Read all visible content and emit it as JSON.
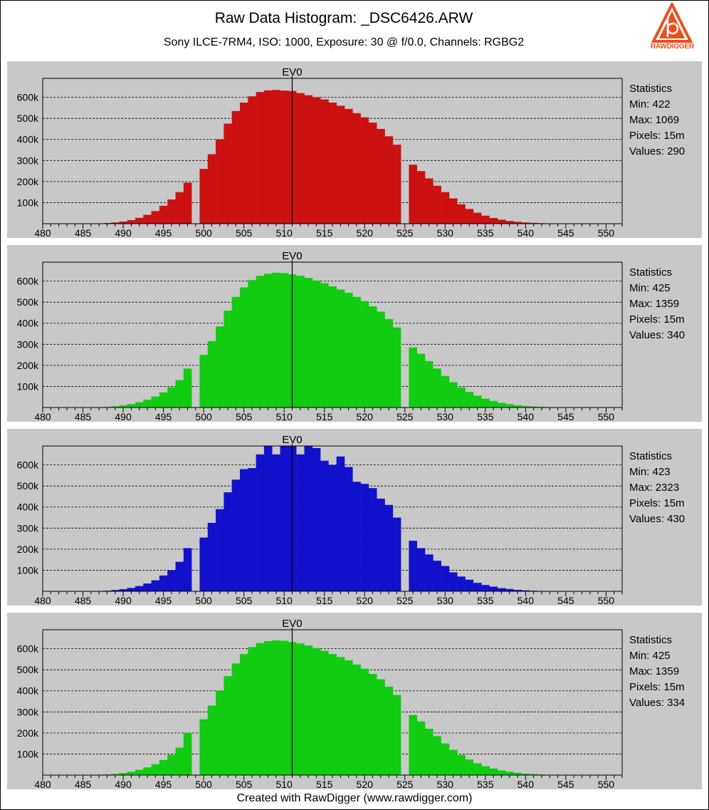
{
  "header": {
    "title": "Raw Data Histogram: _DSC6426.ARW",
    "subtitle": "Sony ILCE-7RM4, ISO: 1000, Exposure: 30 @ f/0.0, Channels: RGBG2",
    "logo_text": "RAWDIGGER",
    "logo_icon": "rawdigger-logo-icon"
  },
  "footer": {
    "text": "Created with RawDigger (www.rawdigger.com)"
  },
  "colors": {
    "panel_bg": "#c8c8c8",
    "red": "#cc1111",
    "green": "#11cc11",
    "blue": "#1111cc",
    "logo": "#e8501e"
  },
  "stat_labels": {
    "heading": "Statistics",
    "min": "Min:",
    "max": "Max:",
    "pixels": "Pixels:",
    "values": "Values:"
  },
  "chart_data": [
    {
      "type": "bar",
      "channel": "R",
      "color": "#cc1111",
      "ev_marker": {
        "label": "EV0",
        "x": 511
      },
      "xlim": [
        480,
        552
      ],
      "ylim": [
        0,
        690000
      ],
      "x_ticks": [
        480,
        485,
        490,
        495,
        500,
        505,
        510,
        515,
        520,
        525,
        530,
        535,
        540,
        545,
        550
      ],
      "y_ticks": [
        {
          "value": 100000,
          "label": "100k"
        },
        {
          "value": 200000,
          "label": "200k"
        },
        {
          "value": 300000,
          "label": "300k"
        },
        {
          "value": 400000,
          "label": "400k"
        },
        {
          "value": 500000,
          "label": "500k"
        },
        {
          "value": 600000,
          "label": "600k"
        }
      ],
      "x": [
        488,
        489,
        490,
        491,
        492,
        493,
        494,
        495,
        496,
        497,
        498,
        499,
        500,
        501,
        502,
        503,
        504,
        505,
        506,
        507,
        508,
        509,
        510,
        511,
        512,
        513,
        514,
        515,
        516,
        517,
        518,
        519,
        520,
        521,
        522,
        523,
        524,
        525,
        526,
        527,
        528,
        529,
        530,
        531,
        532,
        533,
        534,
        535,
        536,
        537,
        538,
        539,
        540,
        541,
        542,
        543,
        544,
        545
      ],
      "values": [
        3000,
        6000,
        10000,
        17000,
        28000,
        42000,
        60000,
        85000,
        115000,
        150000,
        195000,
        0,
        260000,
        330000,
        400000,
        475000,
        535000,
        575000,
        605000,
        625000,
        633000,
        635000,
        632000,
        630000,
        620000,
        610000,
        600000,
        590000,
        575000,
        560000,
        545000,
        525000,
        505000,
        480000,
        450000,
        415000,
        375000,
        0,
        280000,
        250000,
        215000,
        180000,
        150000,
        120000,
        92000,
        70000,
        52000,
        38000,
        27000,
        19000,
        13000,
        9000,
        6000,
        4000,
        2500,
        1500,
        800,
        400
      ],
      "stats": {
        "min": "422",
        "max": "1069",
        "pixels": "15m",
        "values": "290"
      }
    },
    {
      "type": "bar",
      "channel": "G",
      "color": "#11cc11",
      "ev_marker": {
        "label": "EV0",
        "x": 511
      },
      "xlim": [
        480,
        552
      ],
      "ylim": [
        0,
        690000
      ],
      "x_ticks": [
        480,
        485,
        490,
        495,
        500,
        505,
        510,
        515,
        520,
        525,
        530,
        535,
        540,
        545,
        550
      ],
      "y_ticks": [
        {
          "value": 100000,
          "label": "100k"
        },
        {
          "value": 200000,
          "label": "200k"
        },
        {
          "value": 300000,
          "label": "300k"
        },
        {
          "value": 400000,
          "label": "400k"
        },
        {
          "value": 500000,
          "label": "500k"
        },
        {
          "value": 600000,
          "label": "600k"
        }
      ],
      "x": [
        488,
        489,
        490,
        491,
        492,
        493,
        494,
        495,
        496,
        497,
        498,
        499,
        500,
        501,
        502,
        503,
        504,
        505,
        506,
        507,
        508,
        509,
        510,
        511,
        512,
        513,
        514,
        515,
        516,
        517,
        518,
        519,
        520,
        521,
        522,
        523,
        524,
        525,
        526,
        527,
        528,
        529,
        530,
        531,
        532,
        533,
        534,
        535,
        536,
        537,
        538,
        539,
        540,
        541,
        542,
        543,
        544,
        545
      ],
      "values": [
        3000,
        6000,
        10000,
        16000,
        25000,
        37000,
        52000,
        72000,
        96000,
        130000,
        185000,
        0,
        250000,
        315000,
        385000,
        460000,
        525000,
        570000,
        605000,
        625000,
        635000,
        640000,
        638000,
        632000,
        625000,
        615000,
        603000,
        590000,
        575000,
        560000,
        545000,
        525000,
        505000,
        480000,
        455000,
        420000,
        380000,
        0,
        285000,
        255000,
        220000,
        185000,
        150000,
        120000,
        95000,
        74000,
        56000,
        42000,
        31000,
        22000,
        16000,
        11000,
        7500,
        5000,
        3000,
        1800,
        1000,
        500
      ],
      "stats": {
        "min": "425",
        "max": "1359",
        "pixels": "15m",
        "values": "340"
      }
    },
    {
      "type": "bar",
      "channel": "B",
      "color": "#1111cc",
      "ev_marker": {
        "label": "EV0",
        "x": 511
      },
      "xlim": [
        480,
        552
      ],
      "ylim": [
        0,
        690000
      ],
      "x_ticks": [
        480,
        485,
        490,
        495,
        500,
        505,
        510,
        515,
        520,
        525,
        530,
        535,
        540,
        545,
        550
      ],
      "y_ticks": [
        {
          "value": 100000,
          "label": "100k"
        },
        {
          "value": 200000,
          "label": "200k"
        },
        {
          "value": 300000,
          "label": "300k"
        },
        {
          "value": 400000,
          "label": "400k"
        },
        {
          "value": 500000,
          "label": "500k"
        },
        {
          "value": 600000,
          "label": "600k"
        }
      ],
      "x": [
        488,
        489,
        490,
        491,
        492,
        493,
        494,
        495,
        496,
        497,
        498,
        499,
        500,
        501,
        502,
        503,
        504,
        505,
        506,
        507,
        508,
        509,
        510,
        511,
        512,
        513,
        514,
        515,
        516,
        517,
        518,
        519,
        520,
        521,
        522,
        523,
        524,
        525,
        526,
        527,
        528,
        529,
        530,
        531,
        532,
        533,
        534,
        535,
        536,
        537,
        538,
        539,
        540,
        541,
        542,
        543,
        544,
        545
      ],
      "values": [
        3000,
        6000,
        10000,
        16000,
        25000,
        37000,
        52000,
        75000,
        100000,
        140000,
        205000,
        0,
        255000,
        325000,
        390000,
        470000,
        530000,
        580000,
        585000,
        650000,
        690000,
        650000,
        690000,
        690000,
        650000,
        690000,
        680000,
        620000,
        600000,
        640000,
        590000,
        520000,
        510000,
        490000,
        440000,
        410000,
        350000,
        0,
        240000,
        205000,
        175000,
        145000,
        120000,
        90000,
        70000,
        55000,
        40000,
        30000,
        22000,
        15000,
        11000,
        7000,
        4500,
        3000,
        1800,
        1000,
        600,
        300
      ],
      "stats": {
        "min": "423",
        "max": "2323",
        "pixels": "15m",
        "values": "430"
      }
    },
    {
      "type": "bar",
      "channel": "G2",
      "color": "#11cc11",
      "ev_marker": {
        "label": "EV0",
        "x": 511
      },
      "xlim": [
        480,
        552
      ],
      "ylim": [
        0,
        690000
      ],
      "x_ticks": [
        480,
        485,
        490,
        495,
        500,
        505,
        510,
        515,
        520,
        525,
        530,
        535,
        540,
        545,
        550
      ],
      "y_ticks": [
        {
          "value": 100000,
          "label": "100k"
        },
        {
          "value": 200000,
          "label": "200k"
        },
        {
          "value": 300000,
          "label": "300k"
        },
        {
          "value": 400000,
          "label": "400k"
        },
        {
          "value": 500000,
          "label": "500k"
        },
        {
          "value": 600000,
          "label": "600k"
        }
      ],
      "x": [
        488,
        489,
        490,
        491,
        492,
        493,
        494,
        495,
        496,
        497,
        498,
        499,
        500,
        501,
        502,
        503,
        504,
        505,
        506,
        507,
        508,
        509,
        510,
        511,
        512,
        513,
        514,
        515,
        516,
        517,
        518,
        519,
        520,
        521,
        522,
        523,
        524,
        525,
        526,
        527,
        528,
        529,
        530,
        531,
        532,
        533,
        534,
        535,
        536,
        537,
        538,
        539,
        540,
        541,
        542,
        543,
        544,
        545
      ],
      "values": [
        3000,
        6000,
        10000,
        16000,
        25000,
        37000,
        52000,
        72000,
        96000,
        130000,
        200000,
        0,
        265000,
        330000,
        400000,
        470000,
        530000,
        575000,
        608000,
        627000,
        636000,
        640000,
        638000,
        632000,
        625000,
        615000,
        603000,
        590000,
        575000,
        560000,
        545000,
        525000,
        505000,
        480000,
        455000,
        420000,
        380000,
        0,
        285000,
        255000,
        220000,
        185000,
        150000,
        120000,
        95000,
        74000,
        56000,
        42000,
        31000,
        22000,
        16000,
        11000,
        7500,
        5000,
        3000,
        1800,
        1000,
        500
      ],
      "stats": {
        "min": "425",
        "max": "1359",
        "pixels": "15m",
        "values": "334"
      }
    }
  ]
}
